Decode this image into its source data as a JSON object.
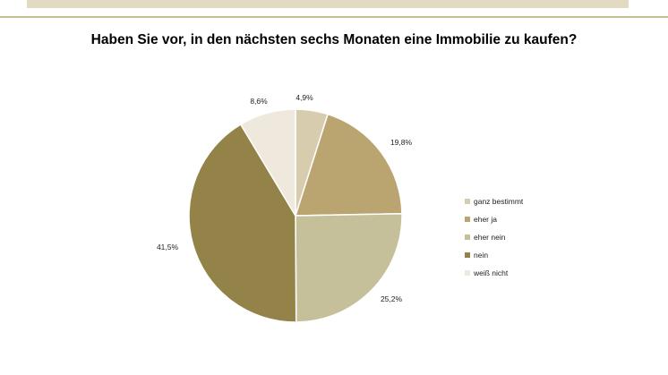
{
  "chart_data": {
    "type": "pie",
    "title": "Haben Sie vor, in den nächsten sechs Monaten eine Immobilie zu kaufen?",
    "categories": [
      "ganz bestimmt",
      "eher ja",
      "eher nein",
      "nein",
      "weiß nicht"
    ],
    "values": [
      4.9,
      19.8,
      25.2,
      41.5,
      8.6
    ],
    "data_labels": [
      "4,9%",
      "19,8%",
      "25,2%",
      "41,5%",
      "8,6%"
    ],
    "colors": [
      "#d8ccae",
      "#baa571",
      "#c6c09a",
      "#948349",
      "#efe9dd"
    ],
    "legend_position": "right"
  }
}
